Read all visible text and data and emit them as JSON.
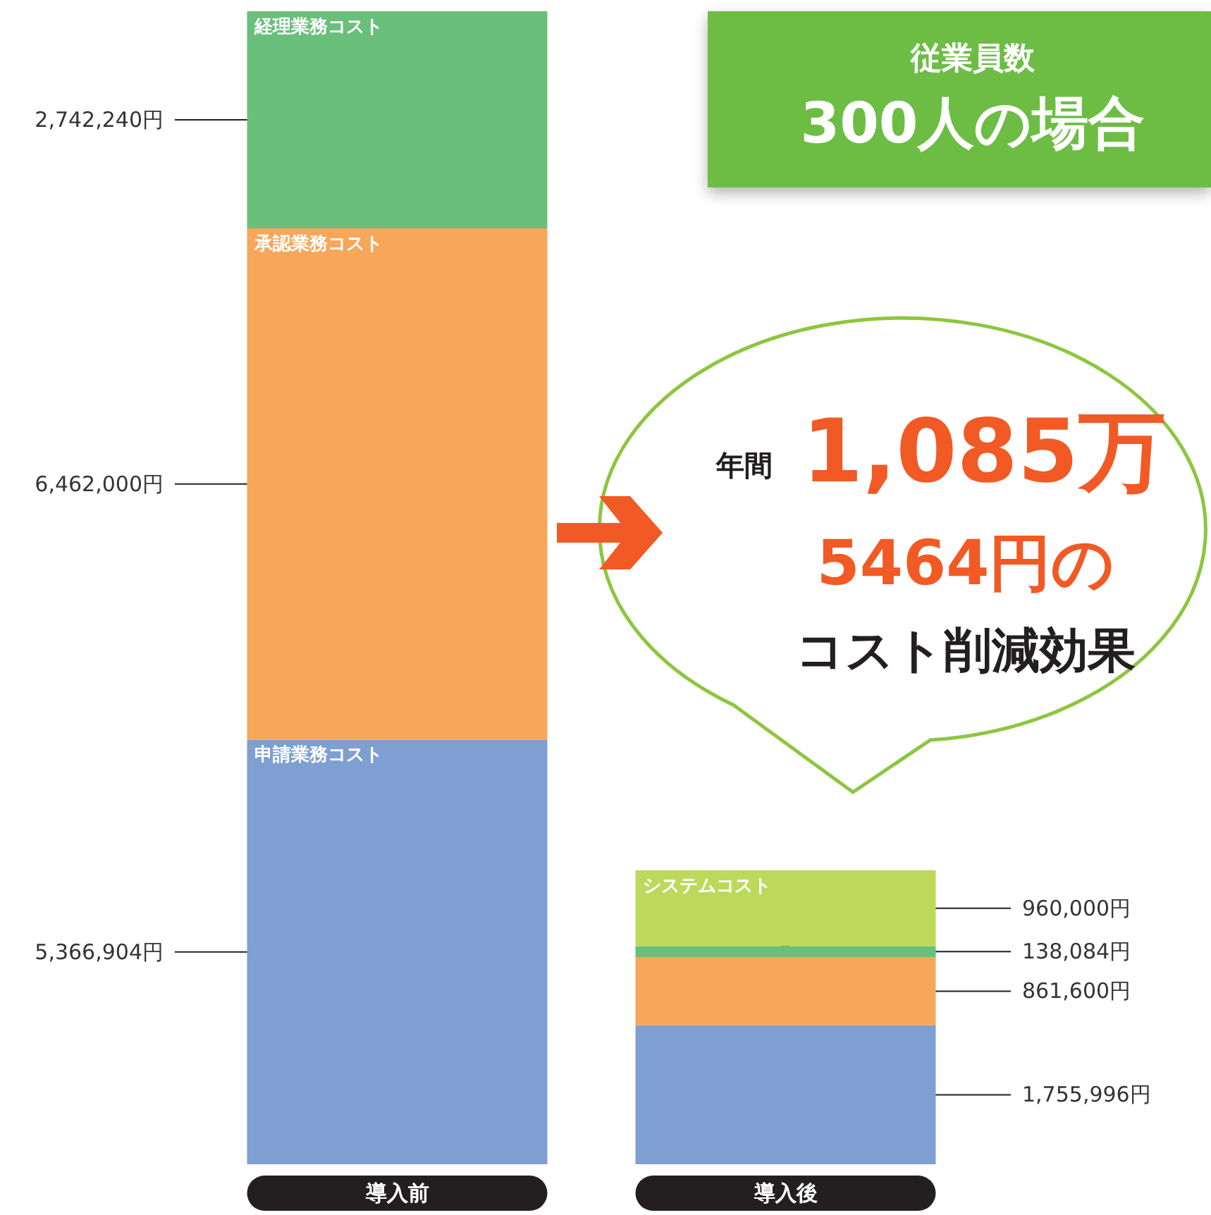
{
  "chart_data": {
    "type": "bar",
    "stacked": true,
    "categories": [
      "導入前",
      "導入後"
    ],
    "series": [
      {
        "name": "申請業務コスト",
        "color": "#7f9fd3",
        "values": [
          5366904,
          1755996
        ],
        "value_labels": [
          "5,366,904円",
          "1,755,996円"
        ]
      },
      {
        "name": "承認業務コスト",
        "color": "#f7a65a",
        "values": [
          6462000,
          861600
        ],
        "value_labels": [
          "6,462,000円",
          "861,600円"
        ]
      },
      {
        "name": "経理業務コスト",
        "color": "#6abf7b",
        "values": [
          2742240,
          138084
        ],
        "value_labels": [
          "2,742,240円",
          "138,084円"
        ]
      },
      {
        "name": "システムコスト",
        "color": "#bcd95b",
        "values": [
          null,
          960000
        ],
        "value_labels": [
          null,
          "960,000円"
        ]
      }
    ],
    "legend": false,
    "grid": false,
    "annotations": [
      "従業員数",
      "300人の場合",
      "年間",
      "1,085万",
      "5464円の",
      "コスト削減効果"
    ]
  }
}
